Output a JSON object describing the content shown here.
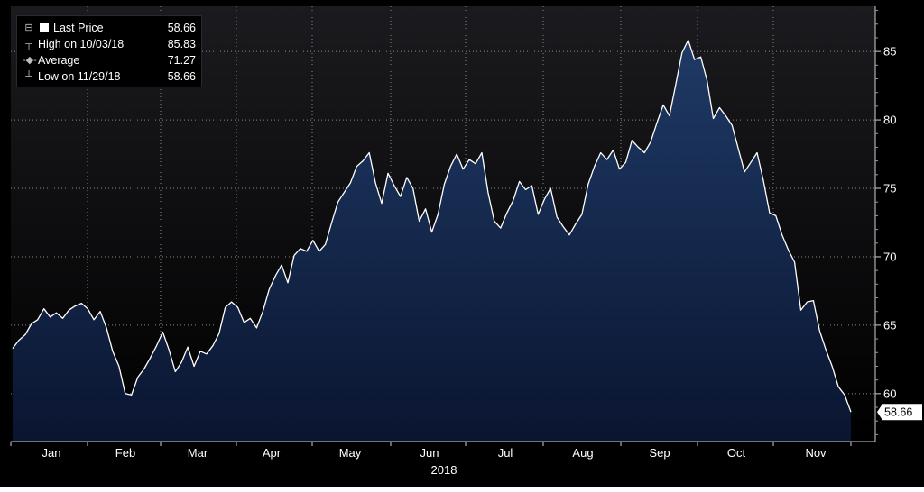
{
  "chart_data": {
    "type": "area",
    "year_label": "2018",
    "months": [
      "Jan",
      "Feb",
      "Mar",
      "Apr",
      "May",
      "Jun",
      "Jul",
      "Aug",
      "Sep",
      "Oct",
      "Nov"
    ],
    "ylim": [
      56.5,
      88.3
    ],
    "yticks": [
      60,
      65,
      70,
      75,
      80,
      85
    ],
    "last_price_label": "58.66",
    "colors": {
      "background_top": "#1b1b1f",
      "background_bottom": "#000000",
      "area_top": "#1f3a66",
      "area_bottom": "#0a1530",
      "line": "#ffffff"
    },
    "legend": [
      {
        "marker": "square-swatch",
        "label": "Last Price",
        "value": "58.66"
      },
      {
        "marker": "high-marker",
        "label": "High on 10/03/18",
        "value": "85.83"
      },
      {
        "marker": "average-marker",
        "label": "Average",
        "value": "71.27"
      },
      {
        "marker": "low-marker",
        "label": "Low on 11/29/18",
        "value": "58.66"
      }
    ],
    "series": [
      {
        "values": [
          63.3,
          63.9,
          64.3,
          65.1,
          65.4,
          66.2,
          65.6,
          65.9,
          65.5,
          66.1,
          66.4,
          66.6,
          66.2,
          65.4,
          66.0,
          64.8,
          63.1,
          62.0,
          60.0,
          59.9,
          61.2,
          61.8,
          62.6,
          63.5,
          64.5,
          63.2,
          61.6,
          62.3,
          63.4,
          62.0,
          63.1,
          62.9,
          63.5,
          64.4,
          66.3,
          66.7,
          66.3,
          65.2,
          65.5,
          64.8,
          66.0,
          67.6,
          68.6,
          69.4,
          68.1,
          70.1,
          70.6,
          70.4,
          71.2,
          70.4,
          70.9,
          72.5,
          74.0,
          74.7,
          75.4,
          76.6,
          77.0,
          77.6,
          75.4,
          73.9,
          76.1,
          75.2,
          74.4,
          75.8,
          75.0,
          72.6,
          73.5,
          71.8,
          73.1,
          75.3,
          76.6,
          77.5,
          76.4,
          77.1,
          76.8,
          77.6,
          74.7,
          72.6,
          72.1,
          73.2,
          74.1,
          75.5,
          74.9,
          75.2,
          73.1,
          74.2,
          75.0,
          72.9,
          72.2,
          71.6,
          72.4,
          73.1,
          75.3,
          76.6,
          77.6,
          77.1,
          77.8,
          76.4,
          76.9,
          78.5,
          78.0,
          77.6,
          78.4,
          79.8,
          81.1,
          80.3,
          82.6,
          84.9,
          85.83,
          84.4,
          84.6,
          82.9,
          80.1,
          80.9,
          80.3,
          79.6,
          77.9,
          76.2,
          76.9,
          77.6,
          75.6,
          73.2,
          73.0,
          71.6,
          70.5,
          69.6,
          66.1,
          66.7,
          66.8,
          64.6,
          63.2,
          62.0,
          60.5,
          59.9,
          58.66
        ]
      }
    ]
  }
}
